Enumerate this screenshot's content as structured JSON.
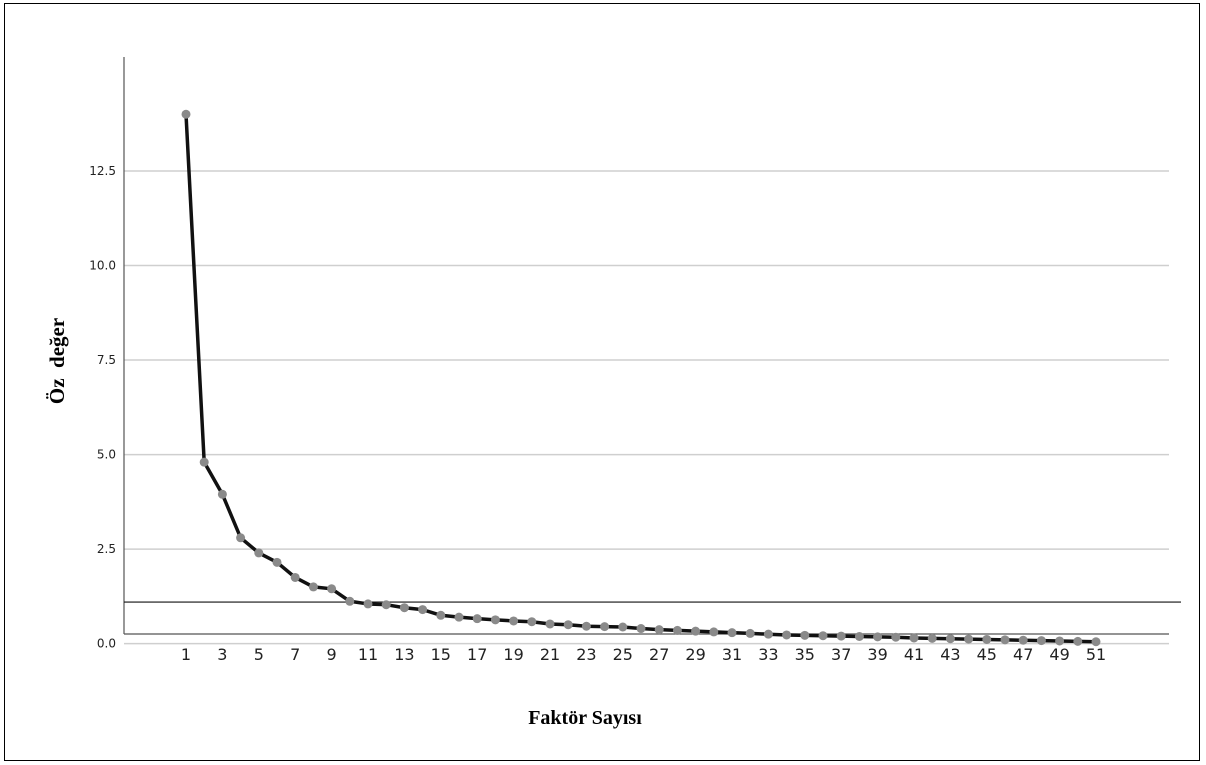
{
  "chart_data": {
    "type": "line",
    "xlabel": "Faktör Sayısı",
    "ylabel": "Öz  değer",
    "x": [
      1,
      2,
      3,
      4,
      5,
      6,
      7,
      8,
      9,
      10,
      11,
      12,
      13,
      14,
      15,
      16,
      17,
      18,
      19,
      20,
      21,
      22,
      23,
      24,
      25,
      26,
      27,
      28,
      29,
      30,
      31,
      32,
      33,
      34,
      35,
      36,
      37,
      38,
      39,
      40,
      41,
      42,
      43,
      44,
      45,
      46,
      47,
      48,
      49,
      50,
      51
    ],
    "x_tick_labels": [
      "1",
      "3",
      "5",
      "7",
      "9",
      "11",
      "13",
      "15",
      "17",
      "19",
      "21",
      "23",
      "25",
      "27",
      "29",
      "31",
      "33",
      "35",
      "37",
      "39",
      "41",
      "43",
      "45",
      "47",
      "49",
      "51"
    ],
    "y_tick_labels": [
      "0.0",
      "2.5",
      "5.0",
      "7.5",
      "10.0",
      "12.5"
    ],
    "y_ticks": [
      0,
      2.5,
      5,
      7.5,
      10,
      12.5
    ],
    "ylim": [
      -0.75,
      14.8
    ],
    "grid": true,
    "reference_line_y": 1.1,
    "series": [
      {
        "values": [
          14.0,
          4.8,
          3.95,
          2.8,
          2.4,
          2.15,
          1.75,
          1.5,
          1.45,
          1.12,
          1.05,
          1.03,
          0.95,
          0.9,
          0.75,
          0.7,
          0.66,
          0.63,
          0.6,
          0.58,
          0.52,
          0.5,
          0.46,
          0.45,
          0.44,
          0.4,
          0.37,
          0.35,
          0.33,
          0.31,
          0.29,
          0.27,
          0.25,
          0.23,
          0.22,
          0.21,
          0.2,
          0.19,
          0.18,
          0.17,
          0.15,
          0.14,
          0.13,
          0.12,
          0.11,
          0.1,
          0.09,
          0.08,
          0.07,
          0.06,
          0.05
        ],
        "line_color": "#111111",
        "marker_color": "#8a8a8a"
      }
    ],
    "colors": {
      "gridline": "#cfcfcf",
      "axis": "#555555",
      "reference_line": "#111111"
    }
  }
}
